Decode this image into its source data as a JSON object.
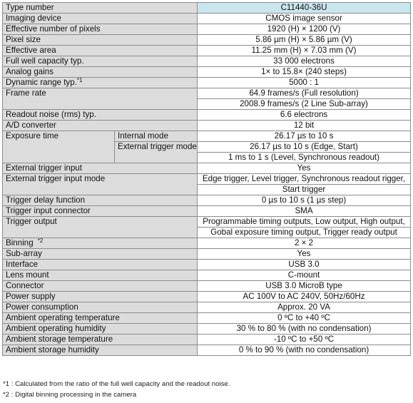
{
  "header": {
    "label": "Type number",
    "value": "C11440-36U"
  },
  "rows": [
    {
      "label": "Imaging device",
      "value": "CMOS image sensor"
    },
    {
      "label": "Effective number of pixels",
      "value": "1920 (H) × 1200 (V)"
    },
    {
      "label": "Pixel size",
      "value": "5.86 µm (H) × 5.86 µm (V)"
    },
    {
      "label": "Effective area",
      "value": "11.25 mm (H) × 7.03 mm (V)"
    },
    {
      "label": "Full well capacity typ.",
      "value": "33 000 electrons"
    },
    {
      "label": "Analog gains",
      "value": "1× to 15.8× (240 steps)"
    },
    {
      "label": "Dynamic range typ.",
      "sup": "*1",
      "value": "5000 : 1"
    },
    {
      "label": "Frame rate",
      "values": [
        "64.9 frames/s (Full resolution)",
        "2008.9 frames/s (2 Line Sub-array)"
      ]
    },
    {
      "label": "Readout noise (rms) typ.",
      "value": "6.6 electrons"
    },
    {
      "label": "A/D converter",
      "value": "12 bit"
    },
    {
      "label": "Exposure time",
      "internal": {
        "label": "Internal mode",
        "value": "26.17 µs to 10 s"
      },
      "external": {
        "label": "External trigger mode",
        "values": [
          "26.17 µs to 10 s (Edge, Start)",
          "1 ms to 1 s (Level, Synchronous readout)"
        ]
      }
    },
    {
      "label": "External trigger input",
      "value": "Yes"
    },
    {
      "label": "External trigger input mode",
      "values": [
        "Edge trigger, Level trigger, Synchronous readout rigger,",
        "Start trigger"
      ]
    },
    {
      "label": "Trigger delay function",
      "value": "0 µs to 10 s (1 µs step)"
    },
    {
      "label": "Trigger input connector",
      "value": "SMA"
    },
    {
      "label": "Trigger output",
      "values": [
        "Programmable timing outputs, Low output, High output,",
        "Gobal exposure timing output, Trigger ready output"
      ]
    },
    {
      "label": "Binning",
      "sup": "*2",
      "value": "2 × 2"
    },
    {
      "label": "Sub-array",
      "value": "Yes"
    },
    {
      "label": "Interface",
      "value": "USB 3.0"
    },
    {
      "label": "Lens mount",
      "value": "C-mount"
    },
    {
      "label": "Connector",
      "value": "USB 3.0 MicroB type"
    },
    {
      "label": "Power supply",
      "value": "AC 100V to AC 240V, 50Hz/60Hz"
    },
    {
      "label": "Power consumption",
      "value": "Approx. 20 VA"
    },
    {
      "label": "Ambient operating temperature",
      "value": "0 ºC to +40 ºC"
    },
    {
      "label": "Ambient operating humidity",
      "value": "30 % to 80 % (with no condensation)"
    },
    {
      "label": "Ambient storage temperature",
      "value": "-10 ºC to +50 ºC"
    },
    {
      "label": "Ambient storage humidity",
      "value": "0 % to 90 % (with no condensation)"
    }
  ],
  "footnotes": [
    "*1 : Calculated from the ratio of the full well capacity and the readout noise.",
    "*2 : Digital binning processing in the camera"
  ],
  "colors": {
    "header_value_bg": "#c9e6ee",
    "label_bg": "#dcdcdc",
    "border": "#8c8c8c"
  }
}
